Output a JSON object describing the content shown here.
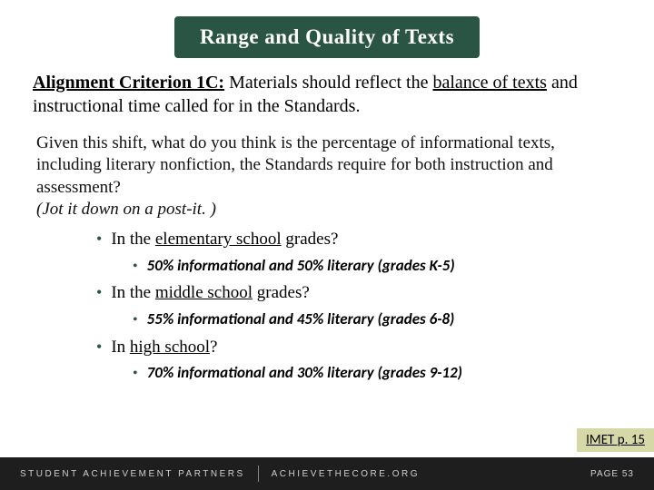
{
  "colors": {
    "brandGreen": "#2a5443",
    "footerBg": "#1e1e1e",
    "imetBg": "#d6d9a7"
  },
  "header": {
    "title": "Range and Quality of Texts"
  },
  "criterion": {
    "lead": "Alignment Criterion 1C:",
    "body1": " Materials should reflect the ",
    "underlined": "balance of texts",
    "body2": " and instructional time called for in the Standards."
  },
  "shift": {
    "line1": "Given this shift, what do you think is the percentage of informational texts, including literary nonfiction, the Standards require for both instruction and assessment?",
    "line2": "(Jot it down on a post-it. )"
  },
  "grades": [
    {
      "prefix": "In the ",
      "underlined": "elementary school",
      "suffix": " grades?",
      "answer": "50% informational and 50% literary (grades K-5)"
    },
    {
      "prefix": "In the ",
      "underlined": "middle school",
      "suffix": " grades?",
      "answer": "55% informational and 45% literary (grades 6-8)"
    },
    {
      "prefix": "In ",
      "underlined": "high school",
      "suffix": "?",
      "answer": "70% informational and 30% literary (grades 9-12)"
    }
  ],
  "imet": "IMET p. 15",
  "footer": {
    "left": "STUDENT ACHIEVEMENT PARTNERS",
    "right": "ACHIEVETHECORE.ORG",
    "page": "PAGE 53"
  }
}
